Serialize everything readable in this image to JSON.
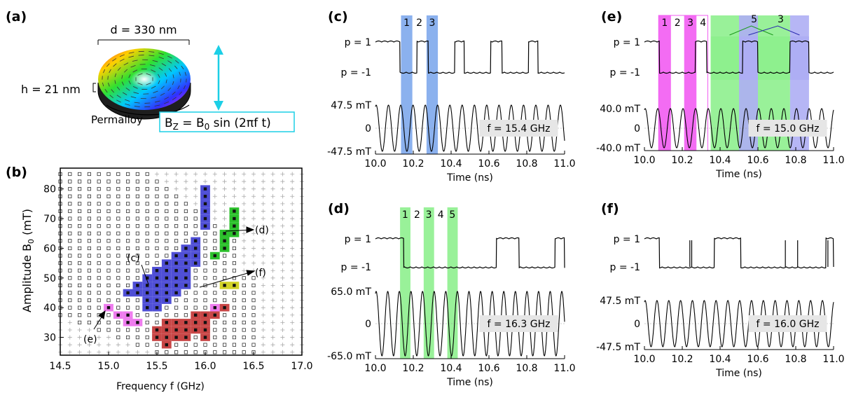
{
  "panel_a": {
    "label": "(a)",
    "diameter": "d = 330 nm",
    "height_label": "h = 21 nm",
    "material": "Permalloy",
    "field_b": "B",
    "field_z": "Z",
    "field_eq": " = B",
    "field_0": "0",
    "field_rest": " sin (2πf t)"
  },
  "colors": {
    "blue": "#4f4fd6",
    "green": "#2cc12c",
    "red": "#c84646",
    "magenta": "#ee7cee",
    "yellow": "#d2d228",
    "cyan": "#1ccfe6",
    "blue_band": "#7ea8ec",
    "green_band": "#8ef08e",
    "magenta_band": "#f25cf2",
    "lavender_band": "#aeaef4",
    "box_label": "#e6e6e6"
  },
  "chart_data": [
    {
      "id": "b",
      "label": "(b)",
      "type": "scatter",
      "xlabel": "Frequency f (GHz)",
      "ylabel_main": "Amplitude B",
      "ylabel_sub": "0",
      "ylabel_unit": " (mT)",
      "xlim": [
        14.5,
        17.0
      ],
      "ylim": [
        24,
        87
      ],
      "xticks": [
        14.5,
        15.0,
        15.5,
        16.0,
        16.5,
        17.0
      ],
      "xtick_labels": [
        "14.5",
        "15.0",
        "15.5",
        "16.0",
        "16.5",
        "17.0"
      ],
      "yticks": [
        30,
        40,
        50,
        60,
        70,
        80
      ],
      "ytick_labels": [
        "30",
        "40",
        "50",
        "60",
        "70",
        "80"
      ],
      "grid_step": {
        "f": 0.1,
        "B": 2.5
      },
      "legend_note": "open squares: simulated points; + : not simulated",
      "series": [
        {
          "name": "blue",
          "color_key": "blue",
          "points": [
            [
              16.0,
              80
            ],
            [
              16.0,
              77.5
            ],
            [
              16.0,
              75
            ],
            [
              16.0,
              72.5
            ],
            [
              16.0,
              70
            ],
            [
              16.0,
              67.5
            ],
            [
              15.9,
              62.5
            ],
            [
              15.9,
              60
            ],
            [
              15.9,
              57.5
            ],
            [
              15.9,
              55
            ],
            [
              15.8,
              60
            ],
            [
              15.8,
              57.5
            ],
            [
              15.8,
              55
            ],
            [
              15.8,
              52.5
            ],
            [
              15.8,
              50
            ],
            [
              15.8,
              47.5
            ],
            [
              15.7,
              57.5
            ],
            [
              15.7,
              55
            ],
            [
              15.7,
              52.5
            ],
            [
              15.7,
              50
            ],
            [
              15.7,
              47.5
            ],
            [
              15.7,
              45
            ],
            [
              15.6,
              55
            ],
            [
              15.6,
              52.5
            ],
            [
              15.6,
              50
            ],
            [
              15.6,
              47.5
            ],
            [
              15.6,
              45
            ],
            [
              15.6,
              42.5
            ],
            [
              15.5,
              52.5
            ],
            [
              15.5,
              50
            ],
            [
              15.5,
              47.5
            ],
            [
              15.5,
              45
            ],
            [
              15.5,
              42.5
            ],
            [
              15.5,
              40
            ],
            [
              15.4,
              50
            ],
            [
              15.4,
              47.5
            ],
            [
              15.4,
              45
            ],
            [
              15.4,
              42.5
            ],
            [
              15.4,
              40
            ],
            [
              15.3,
              47.5
            ],
            [
              15.3,
              45
            ],
            [
              15.2,
              45
            ]
          ]
        },
        {
          "name": "green",
          "color_key": "green",
          "points": [
            [
              16.3,
              72.5
            ],
            [
              16.3,
              70
            ],
            [
              16.3,
              67.5
            ],
            [
              16.3,
              65
            ],
            [
              16.2,
              65
            ],
            [
              16.2,
              62.5
            ],
            [
              16.2,
              60
            ],
            [
              16.1,
              57.5
            ]
          ]
        },
        {
          "name": "yellow",
          "color_key": "yellow",
          "points": [
            [
              16.2,
              47.5
            ],
            [
              16.3,
              47.5
            ]
          ]
        },
        {
          "name": "red",
          "color_key": "red",
          "points": [
            [
              16.2,
              40
            ],
            [
              16.1,
              37.5
            ],
            [
              16.0,
              37.5
            ],
            [
              16.0,
              35
            ],
            [
              16.0,
              32.5
            ],
            [
              16.0,
              30
            ],
            [
              15.9,
              37.5
            ],
            [
              15.9,
              35
            ],
            [
              15.9,
              32.5
            ],
            [
              15.8,
              35
            ],
            [
              15.8,
              32.5
            ],
            [
              15.8,
              30
            ],
            [
              15.7,
              35
            ],
            [
              15.7,
              32.5
            ],
            [
              15.7,
              30
            ],
            [
              15.6,
              35
            ],
            [
              15.6,
              32.5
            ],
            [
              15.6,
              30
            ],
            [
              15.6,
              27.5
            ],
            [
              15.5,
              32.5
            ],
            [
              15.5,
              30
            ]
          ]
        },
        {
          "name": "magenta",
          "color_key": "magenta",
          "points": [
            [
              15.0,
              40
            ],
            [
              15.1,
              37.5
            ],
            [
              15.2,
              37.5
            ],
            [
              15.2,
              35
            ],
            [
              15.3,
              35
            ],
            [
              16.1,
              40
            ]
          ]
        }
      ],
      "annotations": [
        {
          "text": "(c)",
          "target": [
            15.55,
            50
          ]
        },
        {
          "text": "(d)",
          "target": [
            16.3,
            65
          ]
        },
        {
          "text": "(e)",
          "target": [
            15.0,
            40
          ]
        },
        {
          "text": "(f)",
          "target": [
            16.3,
            51
          ]
        }
      ]
    },
    {
      "id": "c",
      "label": "(c)",
      "type": "line",
      "xlabel": "Time (ns)",
      "xlim": [
        10.0,
        11.0
      ],
      "xticks": [
        10.0,
        10.2,
        10.4,
        10.6,
        10.8,
        11.0
      ],
      "xtick_labels": [
        "10.0",
        "10.2",
        "10.4",
        "10.6",
        "10.8",
        "11.0"
      ],
      "ytick_labels": [
        "p = 1",
        "p = -1",
        "47.5 mT",
        "0",
        "-47.5 mT"
      ],
      "freq_label": "f = 15.4 GHz",
      "freq_ghz": 15.4,
      "polarity_up": [
        [
          10.0,
          10.13
        ],
        [
          10.22,
          10.28
        ],
        [
          10.42,
          10.47
        ],
        [
          10.61,
          10.67
        ],
        [
          10.81,
          10.86
        ]
      ],
      "bands": [
        {
          "t0": 10.135,
          "t1": 10.195,
          "color_key": "blue_band"
        },
        {
          "t0": 10.27,
          "t1": 10.33,
          "color_key": "blue_band"
        }
      ],
      "band_labels": [
        {
          "text": "1",
          "t": 10.165
        },
        {
          "text": "2",
          "t": 10.232
        },
        {
          "text": "3",
          "t": 10.3
        }
      ]
    },
    {
      "id": "d",
      "label": "(d)",
      "type": "line",
      "xlabel": "Time (ns)",
      "xlim": [
        10.0,
        11.0
      ],
      "xticks": [
        10.0,
        10.2,
        10.4,
        10.6,
        10.8,
        11.0
      ],
      "xtick_labels": [
        "10.0",
        "10.2",
        "10.4",
        "10.6",
        "10.8",
        "11.0"
      ],
      "ytick_labels": [
        "p = 1",
        "p = -1",
        "65.0 mT",
        "0",
        "-65.0 mT"
      ],
      "freq_label": "f = 16.3 GHz",
      "freq_ghz": 16.3,
      "polarity_up": [
        [
          10.0,
          10.15
        ],
        [
          10.64,
          10.76
        ],
        [
          10.95,
          11.0
        ]
      ],
      "bands": [
        {
          "t0": 10.13,
          "t1": 10.185,
          "color_key": "green_band"
        },
        {
          "t0": 10.255,
          "t1": 10.31,
          "color_key": "green_band"
        },
        {
          "t0": 10.38,
          "t1": 10.435,
          "color_key": "green_band"
        }
      ],
      "band_labels": [
        {
          "text": "1",
          "t": 10.157
        },
        {
          "text": "2",
          "t": 10.22
        },
        {
          "text": "3",
          "t": 10.282
        },
        {
          "text": "4",
          "t": 10.345
        },
        {
          "text": "5",
          "t": 10.407
        }
      ]
    },
    {
      "id": "e",
      "label": "(e)",
      "type": "line",
      "xlabel": "Time (ns)",
      "xlim": [
        10.0,
        11.0
      ],
      "xticks": [
        10.0,
        10.2,
        10.4,
        10.6,
        10.8,
        11.0
      ],
      "xtick_labels": [
        "10.0",
        "10.2",
        "10.4",
        "10.6",
        "10.8",
        "11.0"
      ],
      "ytick_labels": [
        "p = 1",
        "p = -1",
        "40.0 mT",
        "0",
        "-40.0 mT"
      ],
      "freq_label": "f = 15.0 GHz",
      "freq_ghz": 15.0,
      "polarity_up": [
        [
          10.0,
          10.08
        ],
        [
          10.27,
          10.33
        ],
        [
          10.52,
          10.6
        ],
        [
          10.77,
          10.87
        ]
      ],
      "bands": [
        {
          "t0": 10.075,
          "t1": 10.14,
          "color_key": "magenta_band"
        },
        {
          "t0": 10.21,
          "t1": 10.275,
          "color_key": "magenta_band"
        },
        {
          "t0": 10.35,
          "t1": 10.77,
          "color_key": "green_band"
        },
        {
          "t0": 10.5,
          "t1": 10.6,
          "color_key": "lavender_band"
        },
        {
          "t0": 10.77,
          "t1": 10.87,
          "color_key": "lavender_band"
        }
      ],
      "band_labels": [
        {
          "text": "1",
          "t": 10.107
        },
        {
          "text": "2",
          "t": 10.175
        },
        {
          "text": "3",
          "t": 10.243
        },
        {
          "text": "4",
          "t": 10.31
        }
      ],
      "top_labels": [
        {
          "text": "5",
          "t": 10.58
        },
        {
          "text": "3",
          "t": 10.72
        }
      ]
    },
    {
      "id": "f",
      "label": "(f)",
      "type": "line",
      "xlabel": "Time (ns)",
      "xlim": [
        10.0,
        11.0
      ],
      "xticks": [
        10.0,
        10.2,
        10.4,
        10.6,
        10.8,
        11.0
      ],
      "xtick_labels": [
        "10.0",
        "10.2",
        "10.4",
        "10.6",
        "10.8",
        "11.0"
      ],
      "ytick_labels": [
        "p = 1",
        "p = -1",
        "47.5 mT",
        "0",
        "-47.5 mT"
      ],
      "freq_label": "f = 16.0 GHz",
      "freq_ghz": 16.0,
      "polarity_up": [
        [
          10.0,
          10.08
        ],
        [
          10.37,
          10.51
        ],
        [
          10.96,
          11.0
        ]
      ],
      "spikes": [
        10.24,
        10.25,
        10.745,
        10.81,
        10.97
      ],
      "bands": [],
      "band_labels": []
    }
  ]
}
